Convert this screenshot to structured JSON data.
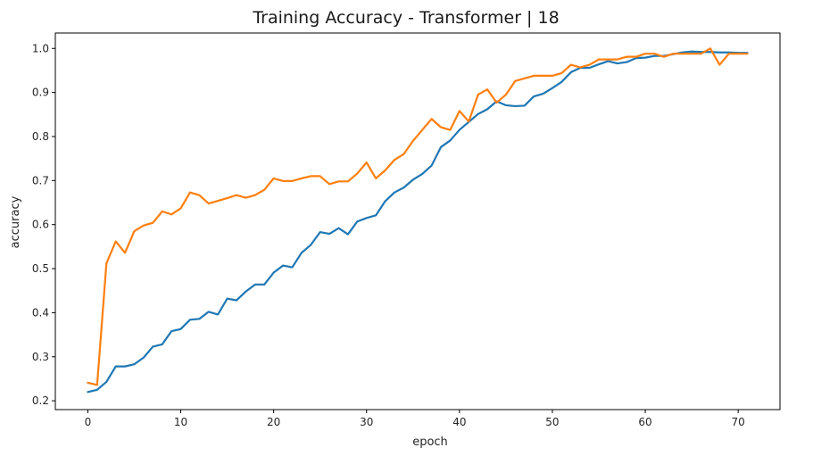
{
  "chart_data": {
    "type": "line",
    "title": "Training Accuracy - Transformer | 18",
    "xlabel": "epoch",
    "ylabel": "accuracy",
    "xlim": [
      -3.5,
      74.5
    ],
    "ylim": [
      0.18,
      1.035
    ],
    "xticks": [
      0,
      10,
      20,
      30,
      40,
      50,
      60,
      70
    ],
    "yticks": [
      0.2,
      0.3,
      0.4,
      0.5,
      0.6,
      0.7,
      0.8,
      0.9,
      1.0
    ],
    "grid": false,
    "legend": "none",
    "x": [
      0,
      1,
      2,
      3,
      4,
      5,
      6,
      7,
      8,
      9,
      10,
      11,
      12,
      13,
      14,
      15,
      16,
      17,
      18,
      19,
      20,
      21,
      22,
      23,
      24,
      25,
      26,
      27,
      28,
      29,
      30,
      31,
      32,
      33,
      34,
      35,
      36,
      37,
      38,
      39,
      40,
      41,
      42,
      43,
      44,
      45,
      46,
      47,
      48,
      49,
      50,
      51,
      52,
      53,
      54,
      55,
      56,
      57,
      58,
      59,
      60,
      61,
      62,
      63,
      64,
      65,
      66,
      67,
      68,
      69,
      70,
      71
    ],
    "series": [
      {
        "color": "#1f77b4",
        "values": [
          0.22,
          0.225,
          0.243,
          0.278,
          0.278,
          0.283,
          0.298,
          0.323,
          0.328,
          0.358,
          0.363,
          0.384,
          0.386,
          0.402,
          0.396,
          0.432,
          0.428,
          0.448,
          0.464,
          0.464,
          0.491,
          0.507,
          0.503,
          0.536,
          0.554,
          0.583,
          0.579,
          0.592,
          0.578,
          0.607,
          0.615,
          0.621,
          0.653,
          0.673,
          0.684,
          0.702,
          0.715,
          0.734,
          0.776,
          0.791,
          0.815,
          0.833,
          0.851,
          0.862,
          0.88,
          0.871,
          0.869,
          0.87,
          0.891,
          0.897,
          0.91,
          0.924,
          0.946,
          0.956,
          0.956,
          0.964,
          0.971,
          0.966,
          0.969,
          0.978,
          0.979,
          0.983,
          0.983,
          0.987,
          0.991,
          0.993,
          0.992,
          0.992,
          0.991,
          0.991,
          0.99,
          0.99
        ]
      },
      {
        "color": "#ff7f0e",
        "values": [
          0.241,
          0.236,
          0.512,
          0.562,
          0.536,
          0.585,
          0.598,
          0.604,
          0.63,
          0.623,
          0.637,
          0.673,
          0.667,
          0.648,
          0.654,
          0.66,
          0.667,
          0.661,
          0.667,
          0.679,
          0.705,
          0.699,
          0.699,
          0.705,
          0.71,
          0.71,
          0.692,
          0.698,
          0.698,
          0.716,
          0.741,
          0.705,
          0.723,
          0.747,
          0.76,
          0.79,
          0.815,
          0.84,
          0.821,
          0.815,
          0.858,
          0.834,
          0.895,
          0.907,
          0.877,
          0.895,
          0.926,
          0.932,
          0.938,
          0.938,
          0.938,
          0.944,
          0.963,
          0.957,
          0.963,
          0.975,
          0.975,
          0.975,
          0.981,
          0.981,
          0.988,
          0.988,
          0.981,
          0.988,
          0.988,
          0.988,
          0.988,
          1.0,
          0.963,
          0.988,
          0.988,
          0.988
        ]
      }
    ]
  }
}
